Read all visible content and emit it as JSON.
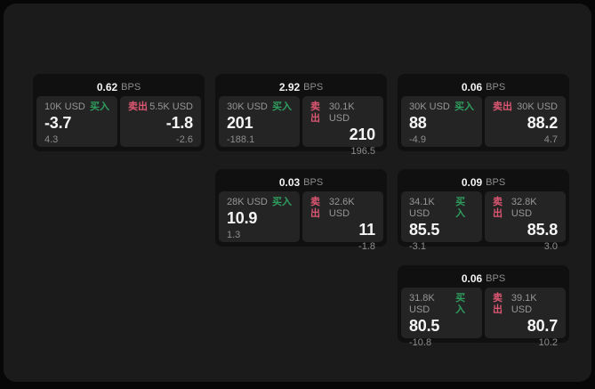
{
  "labels": {
    "bps_unit": "BPS",
    "buy": "买入",
    "sell": "卖出"
  },
  "colors": {
    "buy_green": "#2e9e5e",
    "sell_red": "#dd5672",
    "panel_bg": "#1b1b1b",
    "card_bg": "#101010",
    "subpanel_bg": "#242424",
    "outer_bg": "#070707"
  },
  "cards": [
    {
      "row": 0,
      "col": 0,
      "bps": "0.62",
      "buy": {
        "amount": "10K USD",
        "price": "-3.7",
        "delta": "4.3"
      },
      "sell": {
        "amount": "5.5K USD",
        "price": "-1.8",
        "delta": "-2.6"
      }
    },
    {
      "row": 0,
      "col": 1,
      "bps": "2.92",
      "buy": {
        "amount": "30K USD",
        "price": "201",
        "delta": "-188.1"
      },
      "sell": {
        "amount": "30.1K USD",
        "price": "210",
        "delta": "196.5"
      }
    },
    {
      "row": 0,
      "col": 2,
      "bps": "0.06",
      "buy": {
        "amount": "30K USD",
        "price": "88",
        "delta": "-4.9"
      },
      "sell": {
        "amount": "30K USD",
        "price": "88.2",
        "delta": "4.7"
      }
    },
    {
      "row": 1,
      "col": 1,
      "bps": "0.03",
      "buy": {
        "amount": "28K USD",
        "price": "10.9",
        "delta": "1.3"
      },
      "sell": {
        "amount": "32.6K USD",
        "price": "11",
        "delta": "-1.8"
      }
    },
    {
      "row": 1,
      "col": 2,
      "bps": "0.09",
      "buy": {
        "amount": "34.1K USD",
        "price": "85.5",
        "delta": "-3.1"
      },
      "sell": {
        "amount": "32.8K USD",
        "price": "85.8",
        "delta": "3.0"
      }
    },
    {
      "row": 2,
      "col": 2,
      "bps": "0.06",
      "buy": {
        "amount": "31.8K USD",
        "price": "80.5",
        "delta": "-10.8"
      },
      "sell": {
        "amount": "39.1K USD",
        "price": "80.7",
        "delta": "10.2"
      }
    }
  ]
}
